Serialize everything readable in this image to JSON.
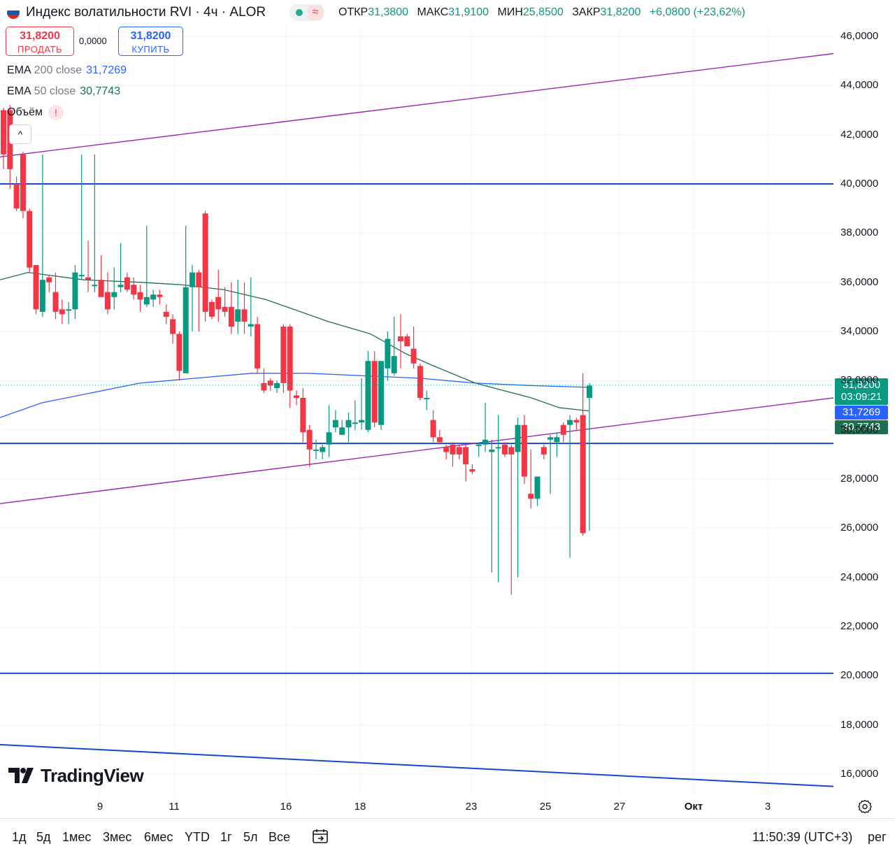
{
  "header": {
    "title": "Индекс волатильности RVI · 4ч · ALOR",
    "status_wave": "≈",
    "ohlc": [
      {
        "key": "ОТКР",
        "value": "31,3800"
      },
      {
        "key": "МАКС",
        "value": "31,9100"
      },
      {
        "key": "МИН",
        "value": "25,8500"
      },
      {
        "key": "ЗАКР",
        "value": "31,8200"
      }
    ],
    "change": "+6,0800 (+23,62%)"
  },
  "trade": {
    "sell_price": "31,8200",
    "sell_label": "ПРОДАТЬ",
    "spread": "0,0000",
    "buy_price": "31,8200",
    "buy_label": "КУПИТЬ"
  },
  "legend": {
    "ema200_name": "EMA",
    "ema200_args": "200 close",
    "ema200_value": "31,7269",
    "ema50_name": "EMA",
    "ema50_args": "50 close",
    "ema50_value": "30,7743",
    "volume_name": "Объём",
    "volume_warning": "!",
    "collapse": "^"
  },
  "price_tags": {
    "last_price": "31,8200",
    "countdown": "03:09:21",
    "ema200": "31,7269",
    "ema50": "30,7743"
  },
  "colors": {
    "up": "#089981",
    "down": "#f23645",
    "ema200": "#2962ff",
    "ema50": "#1e6e4f",
    "trendline": "#9c27b0",
    "hline": "#1848cc"
  },
  "logo_text": "TradingView",
  "periods": [
    "1д",
    "5д",
    "1мес",
    "3мес",
    "6мес",
    "YTD",
    "1г",
    "5л",
    "Все"
  ],
  "clock": "11:50:39 (UTC+3)",
  "mode": "рег",
  "chart_data": {
    "type": "candlestick",
    "interval": "4h",
    "y_axis": {
      "range": [
        15.3,
        46.8
      ],
      "ticks": [
        "46,0000",
        "44,0000",
        "42,0000",
        "40,0000",
        "38,0000",
        "36,0000",
        "34,0000",
        "32,0000",
        "30,0000",
        "28,0000",
        "26,0000",
        "24,0000",
        "22,0000",
        "20,0000",
        "18,0000",
        "16,0000"
      ]
    },
    "x_axis": {
      "ticks": [
        {
          "label": "9",
          "bold": false
        },
        {
          "label": "11",
          "bold": false
        },
        {
          "label": "16",
          "bold": false
        },
        {
          "label": "18",
          "bold": false
        },
        {
          "label": "23",
          "bold": false
        },
        {
          "label": "25",
          "bold": false
        },
        {
          "label": "27",
          "bold": false
        },
        {
          "label": "Окт",
          "bold": true
        },
        {
          "label": "3",
          "bold": false
        }
      ]
    },
    "grid": true,
    "candles": [
      [
        43.0,
        43.1,
        40.6,
        41.2
      ],
      [
        43.0,
        43.2,
        39.8,
        40.6
      ],
      [
        40.0,
        40.3,
        38.9,
        39.0
      ],
      [
        41.2,
        41.3,
        38.6,
        38.9
      ],
      [
        38.9,
        39.0,
        36.4,
        36.6
      ],
      [
        36.7,
        36.7,
        34.7,
        34.9
      ],
      [
        34.8,
        41.2,
        34.6,
        36.1
      ],
      [
        36.2,
        36.3,
        35.6,
        36.0
      ],
      [
        35.6,
        36.4,
        34.5,
        34.8
      ],
      [
        34.9,
        35.3,
        34.3,
        34.7
      ],
      [
        34.9,
        35.2,
        34.3,
        34.9
      ],
      [
        34.9,
        36.7,
        34.5,
        36.4
      ],
      [
        36.3,
        41.2,
        36.1,
        36.3
      ],
      [
        36.2,
        37.7,
        35.6,
        36.1
      ],
      [
        35.9,
        41.2,
        35.6,
        35.9
      ],
      [
        36.1,
        37.1,
        35.6,
        35.4
      ],
      [
        35.6,
        36.4,
        34.7,
        34.9
      ],
      [
        35.4,
        36.6,
        34.9,
        35.6
      ],
      [
        35.8,
        37.6,
        35.6,
        35.9
      ],
      [
        36.2,
        36.4,
        35.6,
        35.7
      ],
      [
        35.9,
        36.2,
        35.3,
        35.5
      ],
      [
        35.6,
        35.9,
        34.8,
        35.3
      ],
      [
        35.1,
        38.3,
        35.0,
        35.4
      ],
      [
        35.3,
        35.7,
        35.0,
        35.5
      ],
      [
        35.5,
        35.7,
        35.1,
        35.4
      ],
      [
        34.8,
        35.1,
        34.3,
        34.6
      ],
      [
        34.5,
        34.7,
        33.5,
        33.9
      ],
      [
        33.9,
        34.0,
        32.0,
        32.4
      ],
      [
        32.3,
        38.3,
        32.3,
        35.8
      ],
      [
        35.8,
        36.7,
        34.0,
        36.4
      ],
      [
        36.4,
        36.5,
        34.0,
        35.8
      ],
      [
        38.8,
        38.9,
        34.4,
        34.8
      ],
      [
        35.2,
        35.3,
        34.5,
        34.6
      ],
      [
        35.4,
        36.5,
        34.4,
        34.9
      ],
      [
        35.0,
        35.8,
        34.6,
        34.8
      ],
      [
        35.0,
        36.0,
        33.9,
        34.2
      ],
      [
        34.4,
        36.1,
        33.9,
        34.9
      ],
      [
        34.9,
        36.0,
        33.9,
        34.4
      ],
      [
        34.2,
        36.2,
        33.8,
        34.3
      ],
      [
        34.3,
        34.6,
        32.3,
        32.5
      ],
      [
        31.9,
        32.5,
        31.5,
        31.6
      ],
      [
        32.0,
        32.1,
        31.6,
        31.8
      ],
      [
        31.7,
        32.0,
        31.5,
        31.9
      ],
      [
        34.2,
        34.3,
        31.5,
        31.9
      ],
      [
        34.2,
        34.3,
        30.9,
        31.6
      ],
      [
        31.4,
        31.6,
        31.0,
        31.3
      ],
      [
        31.3,
        31.7,
        29.5,
        29.9
      ],
      [
        30.0,
        30.2,
        28.5,
        29.2
      ],
      [
        29.2,
        29.6,
        28.8,
        29.2
      ],
      [
        29.1,
        29.4,
        28.8,
        29.3
      ],
      [
        29.4,
        31.0,
        28.9,
        29.9
      ],
      [
        30.1,
        30.8,
        29.9,
        30.4
      ],
      [
        29.8,
        30.4,
        29.8,
        30.1
      ],
      [
        30.1,
        30.7,
        29.5,
        30.4
      ],
      [
        30.3,
        31.2,
        30.0,
        30.3
      ],
      [
        30.3,
        32.1,
        30.0,
        30.4
      ],
      [
        30.0,
        33.2,
        29.9,
        32.8
      ],
      [
        32.8,
        33.2,
        30.1,
        30.3
      ],
      [
        30.2,
        32.8,
        30.0,
        32.8
      ],
      [
        32.5,
        34.0,
        32.0,
        33.7
      ],
      [
        32.3,
        34.6,
        32.2,
        33.0
      ],
      [
        33.8,
        34.7,
        32.5,
        33.6
      ],
      [
        33.8,
        33.9,
        33.5,
        33.4
      ],
      [
        33.3,
        34.2,
        32.5,
        32.7
      ],
      [
        32.6,
        32.7,
        31.2,
        31.3
      ],
      [
        31.3,
        31.6,
        30.8,
        31.3
      ],
      [
        30.4,
        30.8,
        29.5,
        29.7
      ],
      [
        29.7,
        30.0,
        29.4,
        29.5
      ],
      [
        29.3,
        29.4,
        28.8,
        29.1
      ],
      [
        29.4,
        29.5,
        28.5,
        29.0
      ],
      [
        29.3,
        29.4,
        28.8,
        29.0
      ],
      [
        29.3,
        29.4,
        27.9,
        28.6
      ],
      [
        28.4,
        28.6,
        28.2,
        28.3
      ],
      [
        29.4,
        29.5,
        28.9,
        29.4
      ],
      [
        29.4,
        31.1,
        29.1,
        29.6
      ],
      [
        29.1,
        29.6,
        24.2,
        29.2
      ],
      [
        29.3,
        30.6,
        23.8,
        29.3
      ],
      [
        29.4,
        29.5,
        28.9,
        29.0
      ],
      [
        29.3,
        29.4,
        23.3,
        29.0
      ],
      [
        29.1,
        30.5,
        24.0,
        30.2
      ],
      [
        30.2,
        30.6,
        27.8,
        28.1
      ],
      [
        27.4,
        29.2,
        26.8,
        27.2
      ],
      [
        27.2,
        28.1,
        26.9,
        28.1
      ],
      [
        29.3,
        29.4,
        28.8,
        29.0
      ],
      [
        29.6,
        29.8,
        27.4,
        29.7
      ],
      [
        29.5,
        29.9,
        28.9,
        29.7
      ],
      [
        30.2,
        30.3,
        29.5,
        29.8
      ],
      [
        30.2,
        30.6,
        24.8,
        30.4
      ],
      [
        30.4,
        30.5,
        30.0,
        30.3
      ],
      [
        30.6,
        32.3,
        25.7,
        25.8
      ],
      [
        31.3,
        31.9,
        25.9,
        31.8
      ]
    ],
    "ema200": [
      [
        0,
        30.5
      ],
      [
        60,
        31.1
      ],
      [
        200,
        31.9
      ],
      [
        280,
        32.1
      ],
      [
        360,
        32.3
      ],
      [
        440,
        32.3
      ],
      [
        520,
        32.2
      ],
      [
        600,
        32.1
      ],
      [
        680,
        31.9
      ],
      [
        760,
        31.8
      ],
      [
        842,
        31.73
      ]
    ],
    "ema50": [
      [
        0,
        36.1
      ],
      [
        40,
        36.4
      ],
      [
        120,
        36.1
      ],
      [
        200,
        36.0
      ],
      [
        260,
        35.9
      ],
      [
        320,
        35.7
      ],
      [
        380,
        35.3
      ],
      [
        420,
        34.9
      ],
      [
        470,
        34.4
      ],
      [
        530,
        33.9
      ],
      [
        580,
        33.1
      ],
      [
        620,
        32.6
      ],
      [
        680,
        31.9
      ],
      [
        720,
        31.6
      ],
      [
        760,
        31.3
      ],
      [
        800,
        30.9
      ],
      [
        842,
        30.77
      ]
    ],
    "trendlines": [
      {
        "x1": 0,
        "y1": 41.1,
        "x2": 1192,
        "y2": 45.3
      },
      {
        "x1": 0,
        "y1": 27.0,
        "x2": 1192,
        "y2": 31.3
      },
      {
        "x1": 0,
        "y1": 17.2,
        "x2": 1192,
        "y2": 15.5
      }
    ],
    "hlines": [
      40.0,
      29.45,
      20.1
    ],
    "last_price": 31.82,
    "last_ema200": 31.73,
    "last_ema50": 30.77
  }
}
